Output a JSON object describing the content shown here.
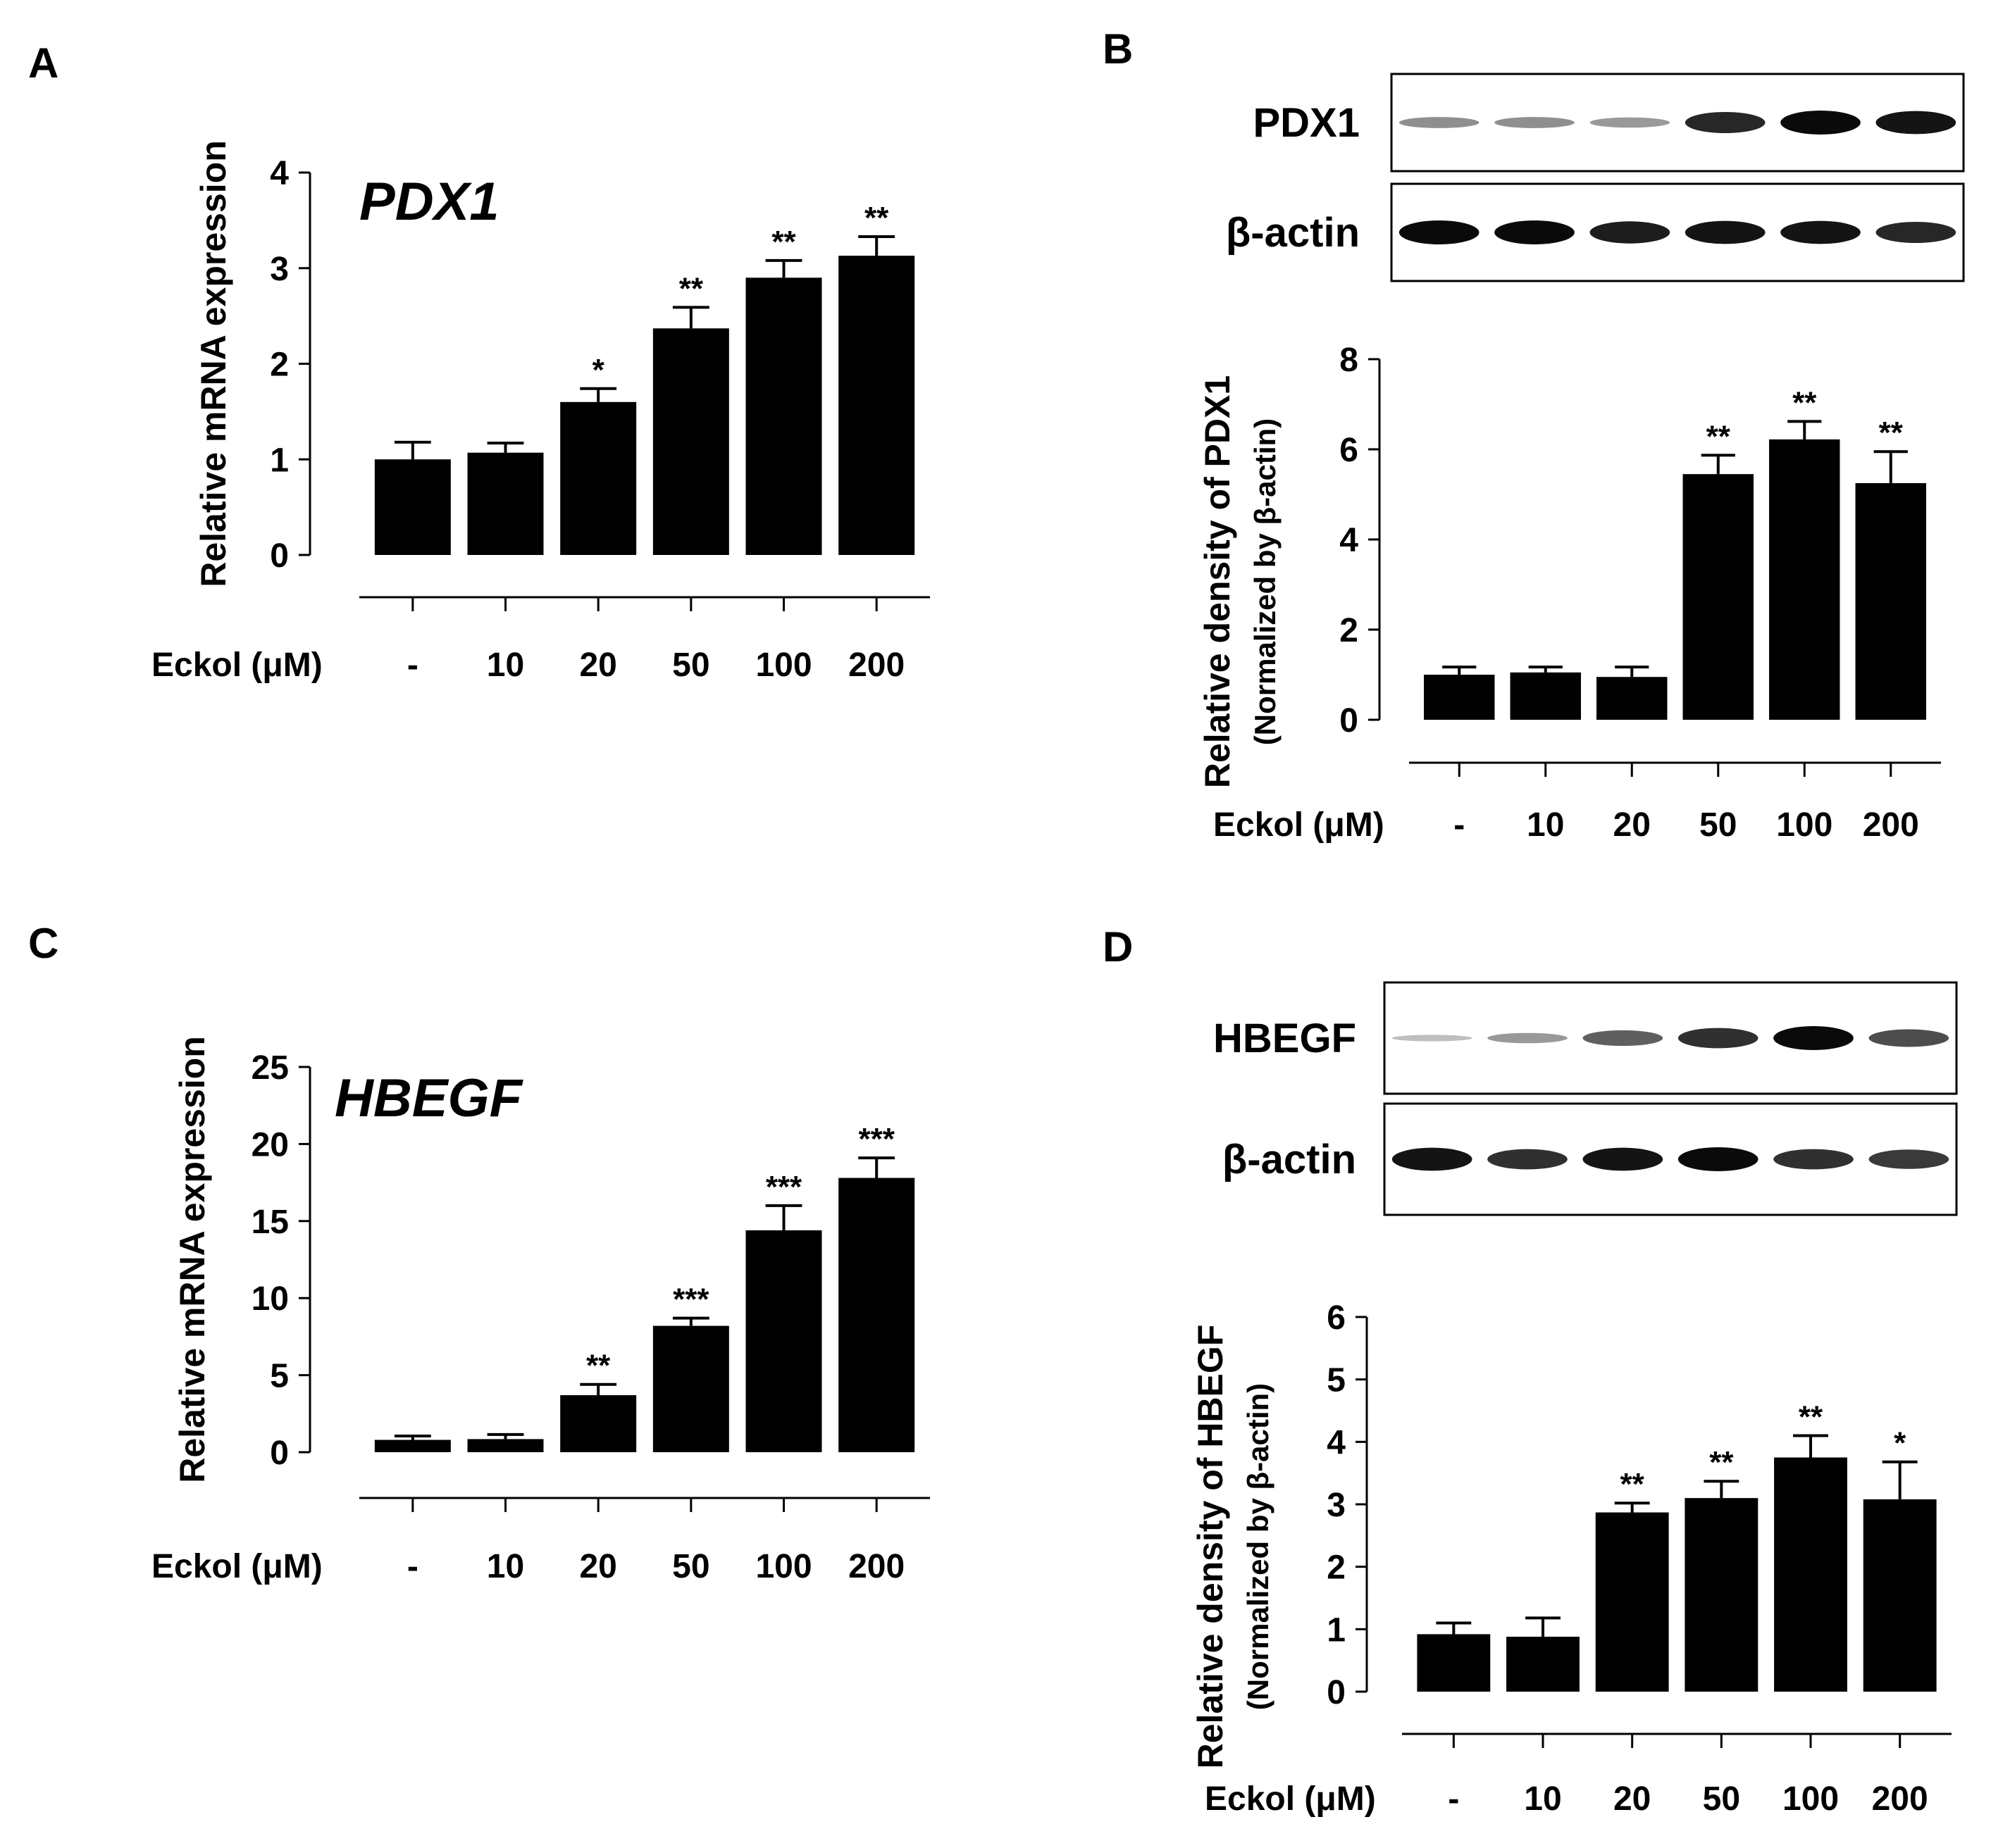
{
  "chart_data": [
    {
      "panel": "A",
      "type": "bar",
      "title": "PDX1",
      "ylabel": "Relative mRNA expression",
      "xlabel": "Eckol (μM)",
      "categories": [
        "-",
        "10",
        "20",
        "50",
        "100",
        "200"
      ],
      "values": [
        1.0,
        1.07,
        1.6,
        2.37,
        2.9,
        3.13
      ],
      "errors": [
        0.18,
        0.1,
        0.14,
        0.22,
        0.18,
        0.2
      ],
      "significance": [
        "",
        "",
        "*",
        "**",
        "**",
        "**"
      ],
      "ylim": [
        0,
        4
      ],
      "yticks": [
        "0",
        "1",
        "2",
        "3",
        "4"
      ]
    },
    {
      "panel": "B",
      "type": "bar",
      "ylabel": "Relative density of PDX1",
      "ylabel2": "(Normalized by β-actin)",
      "xlabel": "Eckol (μM)",
      "categories": [
        "-",
        "10",
        "20",
        "50",
        "100",
        "200"
      ],
      "values": [
        1.0,
        1.05,
        0.95,
        5.45,
        6.22,
        5.25
      ],
      "errors": [
        0.17,
        0.12,
        0.22,
        0.42,
        0.4,
        0.7
      ],
      "significance": [
        "",
        "",
        "",
        "**",
        "**",
        "**"
      ],
      "ylim": [
        0,
        8
      ],
      "yticks": [
        "0",
        "2",
        "4",
        "6",
        "8"
      ],
      "blot_labels": [
        "PDX1",
        "β-actin"
      ]
    },
    {
      "panel": "C",
      "type": "bar",
      "title": "HBEGF",
      "ylabel": "Relative mRNA expression",
      "xlabel": "Eckol (μM)",
      "categories": [
        "-",
        "10",
        "20",
        "50",
        "100",
        "200"
      ],
      "values": [
        0.8,
        0.85,
        3.7,
        8.2,
        14.4,
        17.8
      ],
      "errors": [
        0.25,
        0.3,
        0.7,
        0.5,
        1.6,
        1.3
      ],
      "significance": [
        "",
        "",
        "**",
        "***",
        "***",
        "***"
      ],
      "ylim": [
        0,
        25
      ],
      "yticks": [
        "0",
        "5",
        "10",
        "15",
        "20",
        "25"
      ]
    },
    {
      "panel": "D",
      "type": "bar",
      "ylabel": "Relative density of HBEGF",
      "ylabel2": "(Normalized by β-actin)",
      "xlabel": "Eckol (μM)",
      "categories": [
        "-",
        "10",
        "20",
        "50",
        "100",
        "200"
      ],
      "values": [
        0.92,
        0.88,
        2.87,
        3.1,
        3.75,
        3.08
      ],
      "errors": [
        0.18,
        0.3,
        0.15,
        0.27,
        0.35,
        0.6
      ],
      "significance": [
        "",
        "",
        "**",
        "**",
        "**",
        "*"
      ],
      "ylim": [
        0,
        6
      ],
      "yticks": [
        "0",
        "1",
        "2",
        "3",
        "4",
        "5",
        "6"
      ],
      "blot_labels": [
        "HBEGF",
        "β-actin"
      ]
    }
  ],
  "blots": {
    "B": [
      {
        "label": "PDX1",
        "intensity": [
          0.3,
          0.3,
          0.25,
          0.85,
          1.0,
          0.95
        ]
      },
      {
        "label": "β-actin",
        "intensity": [
          1.0,
          1.0,
          0.9,
          0.95,
          0.95,
          0.85
        ]
      }
    ],
    "D": [
      {
        "label": "HBEGF",
        "intensity": [
          0.05,
          0.25,
          0.55,
          0.8,
          1.0,
          0.65
        ]
      },
      {
        "label": "β-actin",
        "intensity": [
          0.95,
          0.8,
          0.95,
          1.0,
          0.8,
          0.75
        ]
      }
    ]
  }
}
